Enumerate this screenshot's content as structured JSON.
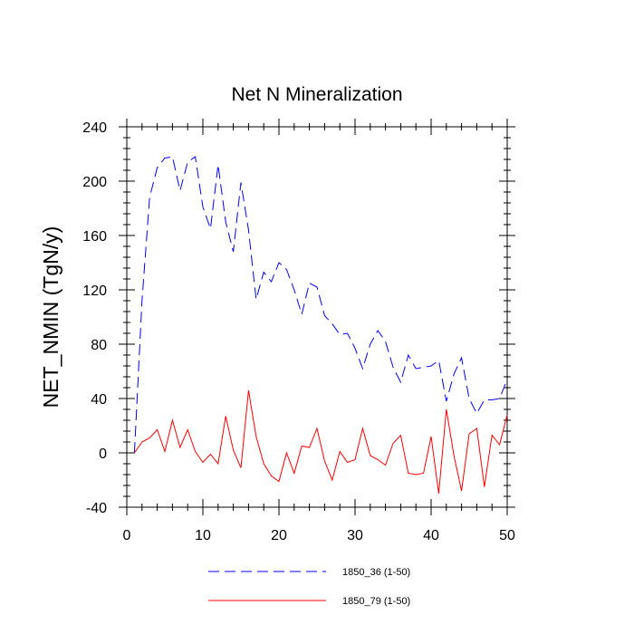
{
  "chart_data": {
    "type": "line",
    "title": "Net N Mineralization",
    "xlabel": "",
    "ylabel": "NET_NMIN  (TgN/y)",
    "xlim": [
      0,
      50
    ],
    "ylim": [
      -40,
      240
    ],
    "xticks": [
      0,
      10,
      20,
      30,
      40,
      50
    ],
    "yticks": [
      -40,
      0,
      40,
      80,
      120,
      160,
      200,
      240
    ],
    "x": [
      1,
      2,
      3,
      4,
      5,
      6,
      7,
      8,
      9,
      10,
      11,
      12,
      13,
      14,
      15,
      16,
      17,
      18,
      19,
      20,
      21,
      22,
      23,
      24,
      25,
      26,
      27,
      28,
      29,
      30,
      31,
      32,
      33,
      34,
      35,
      36,
      37,
      38,
      39,
      40,
      41,
      42,
      43,
      44,
      45,
      46,
      47,
      48,
      49,
      50
    ],
    "series": [
      {
        "name": "1850_36 (1-50)",
        "color": "#0000ff",
        "dash": "dashed",
        "values": [
          0,
          112,
          188,
          210,
          217,
          218,
          193,
          214,
          218,
          181,
          165,
          212,
          170,
          148,
          199,
          164,
          113,
          133,
          126,
          140,
          135,
          120,
          102,
          125,
          122,
          101,
          95,
          87,
          88,
          77,
          62,
          80,
          90,
          82,
          63,
          52,
          72,
          62,
          63,
          64,
          68,
          38,
          58,
          70,
          40,
          29,
          39,
          39,
          40,
          54
        ]
      },
      {
        "name": "1850_79 (1-50)",
        "color": "#ff0000",
        "dash": "solid",
        "values": [
          0,
          8,
          11,
          17,
          1,
          24,
          4,
          17,
          1,
          -7,
          -1,
          -8,
          27,
          2,
          -11,
          46,
          12,
          -8,
          -17,
          -21,
          0,
          -15,
          5,
          4,
          18,
          -6,
          -20,
          1,
          -7,
          -5,
          18,
          -2,
          -5,
          -9,
          7,
          13,
          -15,
          -16,
          -15,
          12,
          -30,
          32,
          -2,
          -28,
          14,
          18,
          -25,
          13,
          6,
          28
        ]
      }
    ],
    "legend_position": "bottom"
  }
}
